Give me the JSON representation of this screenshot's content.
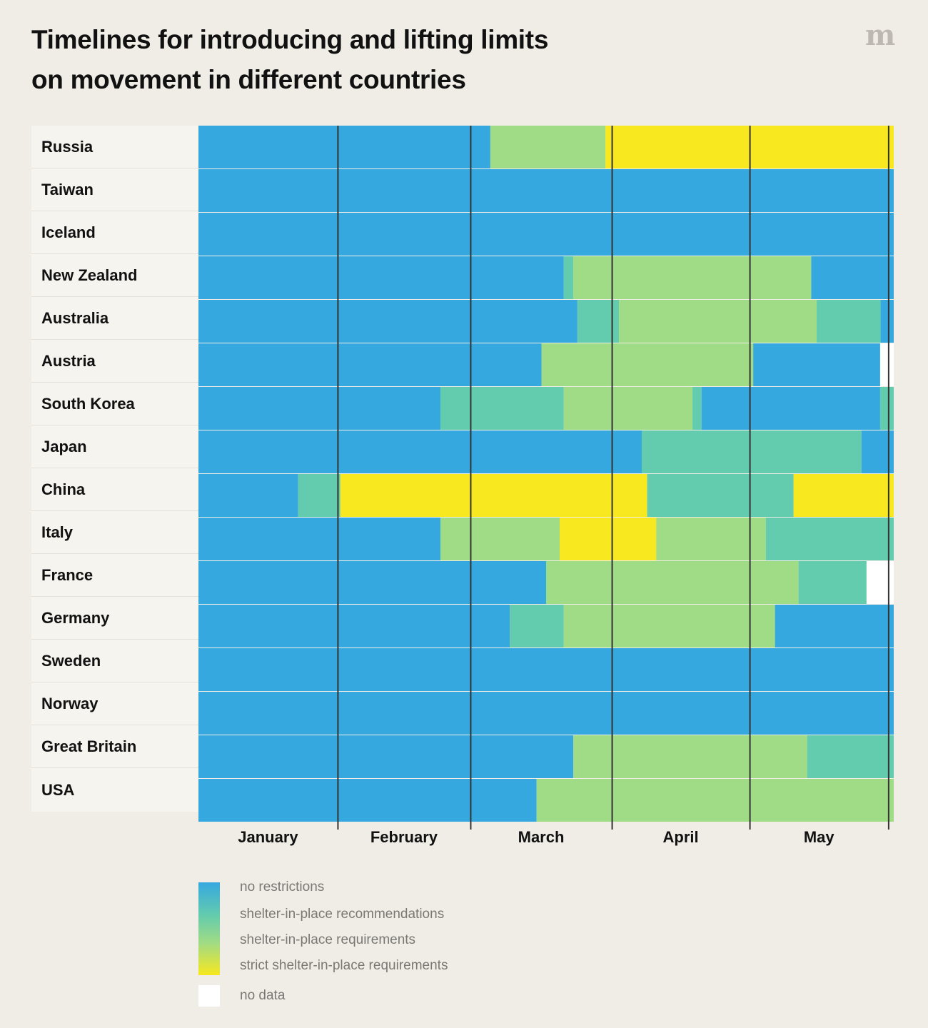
{
  "title_line1": "Timelines for introducing and lifting limits",
  "title_line2": "on movement in different countries",
  "logo_glyph": "m",
  "colors": {
    "no_restrictions": "#35a8e0",
    "recommendations": "#63cbae",
    "requirements": "#a0db85",
    "strict": "#f7e81f",
    "no_data": "#ffffff",
    "divider": "#333333"
  },
  "legend": [
    {
      "key": "no_restrictions",
      "label": "no restrictions"
    },
    {
      "key": "recommendations",
      "label": "shelter-in-place recommendations"
    },
    {
      "key": "requirements",
      "label": "shelter-in-place requirements"
    },
    {
      "key": "strict",
      "label": "strict shelter-in-place requirements"
    },
    {
      "key": "no_data",
      "label": "no data"
    }
  ],
  "chart_data": {
    "type": "timeline",
    "title": "Timelines for introducing and lifting limits on movement in different countries",
    "x_unit": "days since January 1",
    "x_range": [
      0,
      153.4
    ],
    "months": [
      {
        "label": "January",
        "start": 0,
        "end": 30.7
      },
      {
        "label": "February",
        "start": 30.7,
        "end": 60.0
      },
      {
        "label": "March",
        "start": 60.0,
        "end": 91.2
      },
      {
        "label": "April",
        "start": 91.2,
        "end": 121.6
      },
      {
        "label": "May",
        "start": 121.6,
        "end": 152.2
      }
    ],
    "dividers": [
      30.7,
      60.0,
      91.2,
      121.6,
      152.2
    ],
    "rows": [
      {
        "country": "Russia",
        "segments": [
          [
            "no_restrictions",
            0,
            64.4
          ],
          [
            "requirements",
            64.4,
            89.8
          ],
          [
            "strict",
            89.8,
            153.4
          ]
        ]
      },
      {
        "country": "Taiwan",
        "segments": [
          [
            "no_restrictions",
            0,
            153.4
          ]
        ]
      },
      {
        "country": "Iceland",
        "segments": [
          [
            "no_restrictions",
            0,
            153.4
          ]
        ]
      },
      {
        "country": "New Zealand",
        "segments": [
          [
            "no_restrictions",
            0,
            80.6
          ],
          [
            "recommendations",
            80.6,
            82.7
          ],
          [
            "requirements",
            82.7,
            135.2
          ],
          [
            "no_restrictions",
            135.2,
            153.4
          ]
        ]
      },
      {
        "country": "Australia",
        "segments": [
          [
            "no_restrictions",
            0,
            83.6
          ],
          [
            "recommendations",
            83.6,
            92.8
          ],
          [
            "requirements",
            92.8,
            136.4
          ],
          [
            "recommendations",
            136.4,
            150.5
          ],
          [
            "no_restrictions",
            150.5,
            153.4
          ]
        ]
      },
      {
        "country": "Austria",
        "segments": [
          [
            "no_restrictions",
            0,
            75.7
          ],
          [
            "requirements",
            75.7,
            122.4
          ],
          [
            "no_restrictions",
            122.4,
            150.4
          ],
          [
            "no_data",
            150.4,
            153.4
          ]
        ]
      },
      {
        "country": "South Korea",
        "segments": [
          [
            "no_restrictions",
            0,
            53.4
          ],
          [
            "recommendations",
            53.4,
            80.6
          ],
          [
            "requirements",
            80.6,
            109.0
          ],
          [
            "recommendations",
            109.0,
            111.0
          ],
          [
            "no_restrictions",
            111.0,
            150.4
          ],
          [
            "recommendations",
            150.4,
            153.4
          ]
        ]
      },
      {
        "country": "Japan",
        "segments": [
          [
            "no_restrictions",
            0,
            97.8
          ],
          [
            "recommendations",
            97.8,
            146.3
          ],
          [
            "no_restrictions",
            146.3,
            153.4
          ]
        ]
      },
      {
        "country": "China",
        "segments": [
          [
            "no_restrictions",
            0,
            22.0
          ],
          [
            "recommendations",
            22.0,
            31.3
          ],
          [
            "strict",
            31.3,
            99.0
          ],
          [
            "recommendations",
            99.0,
            131.3
          ],
          [
            "strict",
            131.3,
            153.4
          ]
        ]
      },
      {
        "country": "Italy",
        "segments": [
          [
            "no_restrictions",
            0,
            53.4
          ],
          [
            "requirements",
            53.4,
            79.7
          ],
          [
            "strict",
            79.7,
            101.0
          ],
          [
            "requirements",
            101.0,
            125.2
          ],
          [
            "recommendations",
            125.2,
            153.4
          ]
        ]
      },
      {
        "country": "France",
        "segments": [
          [
            "no_restrictions",
            0,
            76.7
          ],
          [
            "requirements",
            76.7,
            132.4
          ],
          [
            "recommendations",
            132.4,
            147.4
          ],
          [
            "no_data",
            147.4,
            153.4
          ]
        ]
      },
      {
        "country": "Germany",
        "segments": [
          [
            "no_restrictions",
            0,
            68.7
          ],
          [
            "recommendations",
            68.7,
            80.6
          ],
          [
            "requirements",
            80.6,
            127.2
          ],
          [
            "no_restrictions",
            127.2,
            153.4
          ]
        ]
      },
      {
        "country": "Sweden",
        "segments": [
          [
            "no_restrictions",
            0,
            153.4
          ]
        ]
      },
      {
        "country": "Norway",
        "segments": [
          [
            "no_restrictions",
            0,
            153.4
          ]
        ]
      },
      {
        "country": "Great Britain",
        "segments": [
          [
            "no_restrictions",
            0,
            82.7
          ],
          [
            "requirements",
            82.7,
            134.3
          ],
          [
            "recommendations",
            134.3,
            153.4
          ]
        ]
      },
      {
        "country": "USA",
        "segments": [
          [
            "no_restrictions",
            0,
            74.6
          ],
          [
            "requirements",
            74.6,
            153.4
          ]
        ]
      }
    ],
    "legend_position": "bottom-left"
  }
}
